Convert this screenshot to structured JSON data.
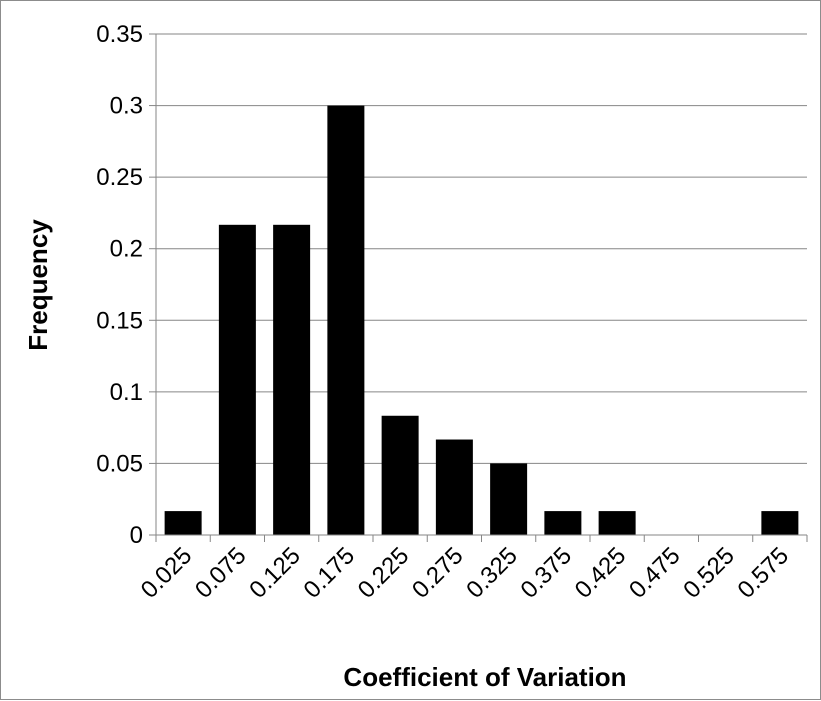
{
  "chart_data": {
    "type": "bar",
    "title": "",
    "xlabel": "Coefficient of Variation",
    "ylabel": "Frequency",
    "categories": [
      "0.025",
      "0.075",
      "0.125",
      "0.175",
      "0.225",
      "0.275",
      "0.325",
      "0.375",
      "0.425",
      "0.475",
      "0.525",
      "0.575"
    ],
    "values": [
      0.0167,
      0.2167,
      0.2167,
      0.3,
      0.0833,
      0.0667,
      0.05,
      0.0167,
      0.0167,
      0,
      0,
      0.0167
    ],
    "ylim": [
      0,
      0.35
    ],
    "yticks": [
      "0",
      "0.05",
      "0.1",
      "0.15",
      "0.2",
      "0.25",
      "0.3",
      "0.35"
    ],
    "grid": true,
    "legend": "none",
    "bar_color": "#000000",
    "grid_color": "#868686"
  }
}
